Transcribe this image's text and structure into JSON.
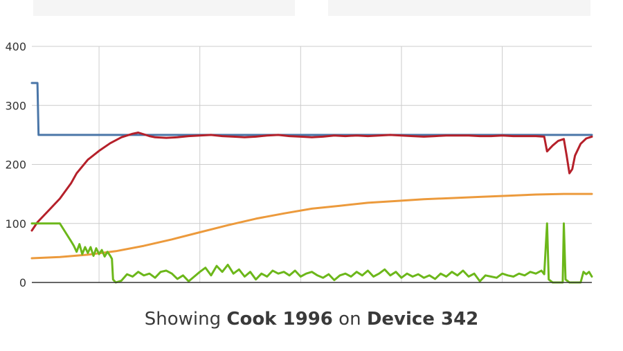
{
  "filters": {
    "left_placeholder": "",
    "right_placeholder": ""
  },
  "caption": {
    "prefix": "Showing",
    "cook": "Cook 1996",
    "mid": "on",
    "device": "Device 342"
  },
  "chart_data": {
    "type": "line",
    "title": "",
    "xlabel": "",
    "ylabel": "",
    "ylim": [
      0,
      400
    ],
    "yticks": [
      0,
      100,
      200,
      300,
      400
    ],
    "xlim": [
      0,
      100
    ],
    "x_gridlines": [
      12,
      30,
      48,
      66,
      84
    ],
    "grid": true,
    "legend": "none",
    "series": [
      {
        "color": "#4a76a8",
        "points": [
          [
            0,
            338
          ],
          [
            1,
            338
          ],
          [
            1.2,
            250
          ],
          [
            100,
            250
          ]
        ]
      },
      {
        "color": "#b5202a",
        "points": [
          [
            0,
            88
          ],
          [
            1,
            102
          ],
          [
            3,
            122
          ],
          [
            5,
            142
          ],
          [
            7,
            168
          ],
          [
            8,
            185
          ],
          [
            10,
            208
          ],
          [
            12,
            223
          ],
          [
            14,
            236
          ],
          [
            16,
            246
          ],
          [
            18,
            252
          ],
          [
            19,
            254
          ],
          [
            20,
            251
          ],
          [
            21,
            248
          ],
          [
            22,
            246
          ],
          [
            24,
            245
          ],
          [
            26,
            246
          ],
          [
            28,
            248
          ],
          [
            30,
            249
          ],
          [
            32,
            250
          ],
          [
            34,
            248
          ],
          [
            36,
            247
          ],
          [
            38,
            246
          ],
          [
            40,
            247
          ],
          [
            42,
            249
          ],
          [
            44,
            250
          ],
          [
            46,
            248
          ],
          [
            48,
            247
          ],
          [
            50,
            246
          ],
          [
            52,
            247
          ],
          [
            54,
            249
          ],
          [
            56,
            248
          ],
          [
            58,
            249
          ],
          [
            60,
            248
          ],
          [
            62,
            249
          ],
          [
            64,
            250
          ],
          [
            66,
            249
          ],
          [
            68,
            248
          ],
          [
            70,
            247
          ],
          [
            72,
            248
          ],
          [
            74,
            249
          ],
          [
            76,
            249
          ],
          [
            78,
            249
          ],
          [
            80,
            248
          ],
          [
            82,
            248
          ],
          [
            84,
            249
          ],
          [
            86,
            248
          ],
          [
            88,
            248
          ],
          [
            90,
            248
          ],
          [
            91.5,
            247
          ],
          [
            92,
            222
          ],
          [
            93,
            232
          ],
          [
            94,
            240
          ],
          [
            95,
            243
          ],
          [
            95.5,
            215
          ],
          [
            96,
            185
          ],
          [
            96.5,
            192
          ],
          [
            97,
            215
          ],
          [
            98,
            235
          ],
          [
            99,
            244
          ],
          [
            100,
            247
          ]
        ]
      },
      {
        "color": "#ec9a3c",
        "points": [
          [
            0,
            41
          ],
          [
            5,
            43
          ],
          [
            10,
            47
          ],
          [
            15,
            53
          ],
          [
            20,
            62
          ],
          [
            25,
            73
          ],
          [
            30,
            85
          ],
          [
            35,
            97
          ],
          [
            40,
            108
          ],
          [
            45,
            117
          ],
          [
            50,
            125
          ],
          [
            55,
            130
          ],
          [
            60,
            135
          ],
          [
            65,
            138
          ],
          [
            70,
            141
          ],
          [
            75,
            143
          ],
          [
            80,
            145
          ],
          [
            85,
            147
          ],
          [
            90,
            149
          ],
          [
            95,
            150
          ],
          [
            100,
            150
          ]
        ]
      },
      {
        "color": "#6cb71a",
        "points": [
          [
            0,
            100
          ],
          [
            5,
            100
          ],
          [
            6,
            85
          ],
          [
            7,
            70
          ],
          [
            7.5,
            62
          ],
          [
            8,
            52
          ],
          [
            8.5,
            65
          ],
          [
            9,
            48
          ],
          [
            9.5,
            60
          ],
          [
            10,
            50
          ],
          [
            10.5,
            60
          ],
          [
            11,
            45
          ],
          [
            11.5,
            58
          ],
          [
            12,
            48
          ],
          [
            12.5,
            55
          ],
          [
            13,
            44
          ],
          [
            13.5,
            52
          ],
          [
            14,
            45
          ],
          [
            14.3,
            40
          ],
          [
            14.5,
            5
          ],
          [
            15,
            0
          ],
          [
            16,
            3
          ],
          [
            17,
            14
          ],
          [
            18,
            10
          ],
          [
            19,
            18
          ],
          [
            20,
            12
          ],
          [
            21,
            15
          ],
          [
            22,
            8
          ],
          [
            23,
            18
          ],
          [
            24,
            20
          ],
          [
            25,
            15
          ],
          [
            26,
            6
          ],
          [
            27,
            12
          ],
          [
            28,
            2
          ],
          [
            29,
            10
          ],
          [
            30,
            18
          ],
          [
            31,
            25
          ],
          [
            32,
            12
          ],
          [
            33,
            28
          ],
          [
            34,
            18
          ],
          [
            35,
            30
          ],
          [
            36,
            15
          ],
          [
            37,
            22
          ],
          [
            38,
            10
          ],
          [
            39,
            18
          ],
          [
            40,
            5
          ],
          [
            41,
            15
          ],
          [
            42,
            10
          ],
          [
            43,
            20
          ],
          [
            44,
            15
          ],
          [
            45,
            18
          ],
          [
            46,
            12
          ],
          [
            47,
            20
          ],
          [
            48,
            10
          ],
          [
            49,
            15
          ],
          [
            50,
            18
          ],
          [
            51,
            12
          ],
          [
            52,
            8
          ],
          [
            53,
            14
          ],
          [
            54,
            4
          ],
          [
            55,
            12
          ],
          [
            56,
            15
          ],
          [
            57,
            10
          ],
          [
            58,
            18
          ],
          [
            59,
            12
          ],
          [
            60,
            20
          ],
          [
            61,
            10
          ],
          [
            62,
            15
          ],
          [
            63,
            22
          ],
          [
            64,
            12
          ],
          [
            65,
            18
          ],
          [
            66,
            8
          ],
          [
            67,
            15
          ],
          [
            68,
            10
          ],
          [
            69,
            14
          ],
          [
            70,
            8
          ],
          [
            71,
            12
          ],
          [
            72,
            6
          ],
          [
            73,
            15
          ],
          [
            74,
            10
          ],
          [
            75,
            18
          ],
          [
            76,
            12
          ],
          [
            77,
            20
          ],
          [
            78,
            10
          ],
          [
            79,
            15
          ],
          [
            80,
            2
          ],
          [
            81,
            12
          ],
          [
            82,
            10
          ],
          [
            83,
            8
          ],
          [
            84,
            15
          ],
          [
            85,
            12
          ],
          [
            86,
            10
          ],
          [
            87,
            15
          ],
          [
            88,
            12
          ],
          [
            89,
            18
          ],
          [
            90,
            15
          ],
          [
            91,
            20
          ],
          [
            91.5,
            14
          ],
          [
            92,
            100
          ],
          [
            92.3,
            5
          ],
          [
            93,
            0
          ],
          [
            94,
            0
          ],
          [
            94.8,
            0
          ],
          [
            95,
            100
          ],
          [
            95.3,
            5
          ],
          [
            96,
            0
          ],
          [
            97,
            0
          ],
          [
            98,
            0
          ],
          [
            98.5,
            18
          ],
          [
            99,
            14
          ],
          [
            99.5,
            18
          ],
          [
            100,
            10
          ]
        ]
      }
    ]
  }
}
